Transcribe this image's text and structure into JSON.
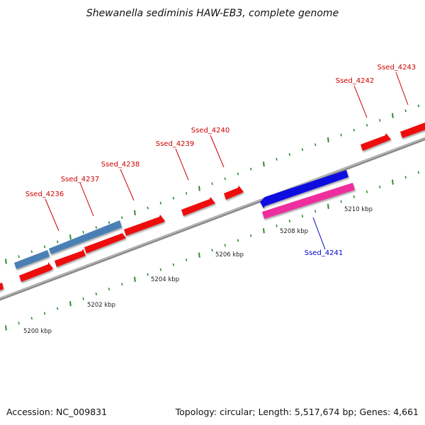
{
  "title": "Shewanella sediminis HAW-EB3, complete genome",
  "accession": "Accession: NC_009831",
  "summary": "Topology: circular; Length: 5,517,674 bp; Genes: 4,661",
  "colors": {
    "backbone": "#8a8a8a",
    "tick": "#2e8b2e",
    "forward_gene": "#ee1111",
    "blue_gene": "#4a7fb5",
    "bright_blue_gene": "#1010e0",
    "pink_gene": "#ee2e9e",
    "label_red": "#cc0000",
    "label_blue": "#0000cc"
  },
  "scale_labels": [
    "5200 kbp",
    "5202 kbp",
    "5204 kbp",
    "5206 kbp",
    "5208 kbp",
    "5210 kbp"
  ],
  "gene_labels": [
    {
      "name": "Ssed_4236",
      "color": "#cc0000"
    },
    {
      "name": "Ssed_4237",
      "color": "#cc0000"
    },
    {
      "name": "Ssed_4238",
      "color": "#cc0000"
    },
    {
      "name": "Ssed_4239",
      "color": "#cc0000"
    },
    {
      "name": "Ssed_4240",
      "color": "#cc0000"
    },
    {
      "name": "Ssed_4241",
      "color": "#0000cc"
    },
    {
      "name": "Ssed_4242",
      "color": "#cc0000"
    },
    {
      "name": "Ssed_4243",
      "color": "#cc0000"
    }
  ]
}
